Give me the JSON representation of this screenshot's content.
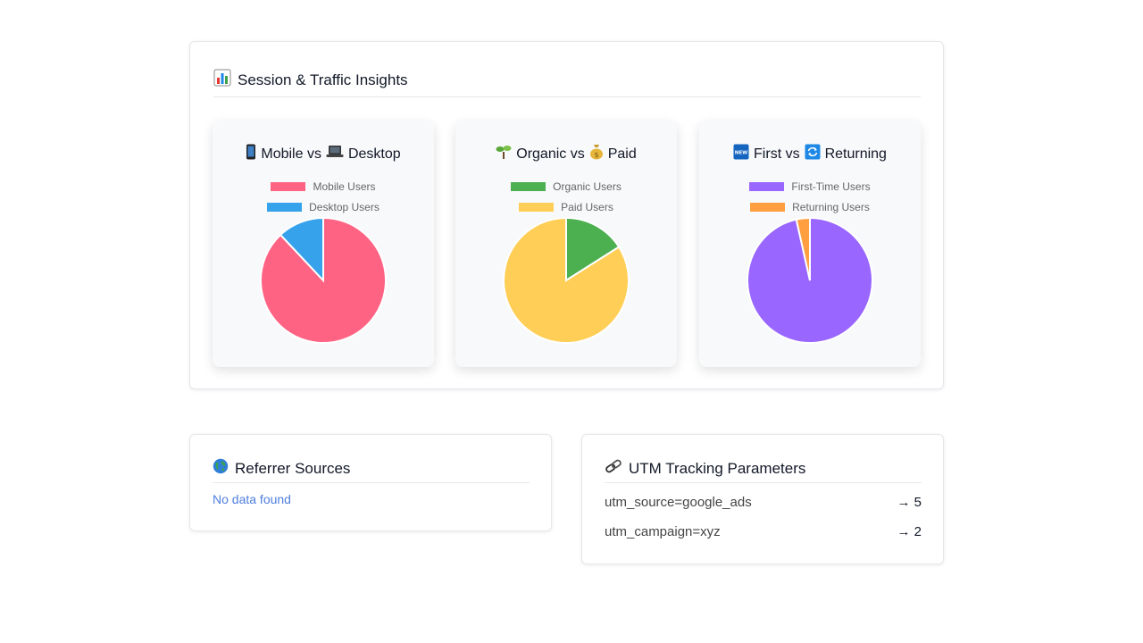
{
  "insights": {
    "title": "Session & Traffic Insights",
    "title_icon": "bar-chart-icon",
    "panels": [
      {
        "title_parts": [
          "Mobile vs",
          "Desktop"
        ],
        "icons": [
          "mobile-phone-icon",
          "laptop-icon"
        ],
        "chart_data": {
          "type": "pie",
          "categories": [
            "Mobile Users",
            "Desktop Users"
          ],
          "values": [
            88,
            12
          ],
          "colors": [
            "#ff6384",
            "#36a2eb"
          ],
          "legend": "top"
        }
      },
      {
        "title_parts": [
          "Organic vs",
          "Paid"
        ],
        "icons": [
          "seedling-icon",
          "money-bag-icon"
        ],
        "chart_data": {
          "type": "pie",
          "categories": [
            "Organic Users",
            "Paid Users"
          ],
          "values": [
            16,
            84
          ],
          "colors": [
            "#4caf50",
            "#ffce56"
          ],
          "legend": "top"
        }
      },
      {
        "title_parts": [
          "First vs",
          "Returning"
        ],
        "icons": [
          "new-badge-icon",
          "repeat-icon"
        ],
        "chart_data": {
          "type": "pie",
          "categories": [
            "First-Time Users",
            "Returning Users"
          ],
          "values": [
            96.5,
            3.5
          ],
          "colors": [
            "#9966ff",
            "#ff9f40"
          ],
          "legend": "top"
        }
      }
    ]
  },
  "referrer": {
    "title": "Referrer Sources",
    "title_icon": "globe-icon",
    "empty_text": "No data found"
  },
  "utm": {
    "title": "UTM Tracking Parameters",
    "title_icon": "link-icon",
    "rows": [
      {
        "param": "utm_source=google_ads",
        "count": "→ 5"
      },
      {
        "param": "utm_campaign=xyz",
        "count": "→ 2"
      }
    ]
  }
}
